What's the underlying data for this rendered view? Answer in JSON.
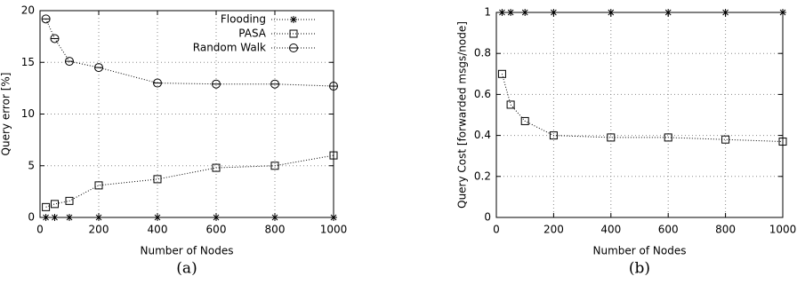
{
  "chart_data": [
    {
      "type": "line",
      "caption": "(a)",
      "xlabel": "Number of Nodes",
      "ylabel": "Query error [%]",
      "x": [
        20,
        50,
        100,
        200,
        400,
        600,
        800,
        1000
      ],
      "series": [
        {
          "name": "Flooding",
          "color": "#000000",
          "marker": "asterisk",
          "values": [
            0,
            0,
            0,
            0,
            0,
            0,
            0,
            0
          ]
        },
        {
          "name": "PASA",
          "color": "#000000",
          "marker": "square",
          "values": [
            1.0,
            1.3,
            1.6,
            3.1,
            3.7,
            4.8,
            5.0,
            6.0
          ]
        },
        {
          "name": "Random Walk",
          "color": "#000000",
          "marker": "circle",
          "values": [
            19.2,
            17.3,
            15.1,
            14.5,
            13.0,
            12.9,
            12.9,
            12.7
          ]
        }
      ],
      "xlim": [
        0,
        1000
      ],
      "xticks": [
        0,
        200,
        400,
        600,
        800,
        1000
      ],
      "ylim": [
        0,
        20
      ],
      "yticks": [
        0,
        5,
        10,
        15,
        20
      ],
      "grid": true,
      "legend": "upper right"
    },
    {
      "type": "line",
      "caption": "(b)",
      "xlabel": "Number of Nodes",
      "ylabel": "Query Cost [forwarded msgs/node]",
      "x": [
        20,
        50,
        100,
        200,
        400,
        600,
        800,
        1000
      ],
      "series": [
        {
          "color": "#000000",
          "marker": "asterisk",
          "values": [
            1,
            1,
            1,
            1,
            1,
            1,
            1,
            1
          ]
        },
        {
          "color": "#000000",
          "marker": "square",
          "values": [
            0.7,
            0.55,
            0.47,
            0.4,
            0.39,
            0.39,
            0.38,
            0.37
          ]
        }
      ],
      "xlim": [
        0,
        1000
      ],
      "xticks": [
        0,
        200,
        400,
        600,
        800,
        1000
      ],
      "ylim": [
        0,
        1
      ],
      "yticks": [
        0,
        0.2,
        0.4,
        0.6,
        0.8,
        1
      ],
      "grid": true
    }
  ]
}
